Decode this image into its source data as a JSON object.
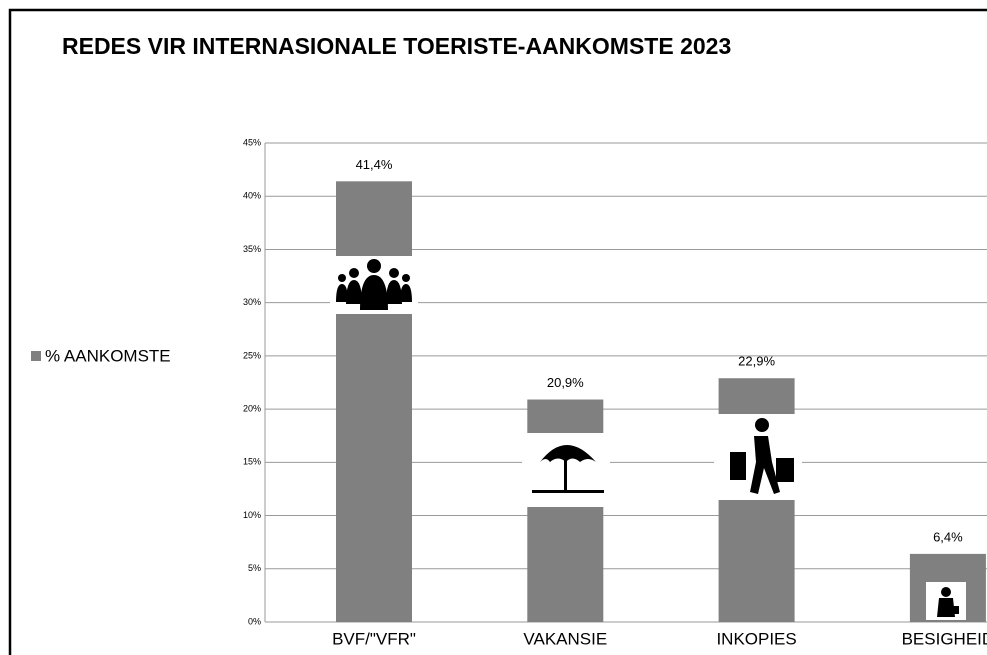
{
  "chart_data": {
    "type": "bar",
    "title": "REDES VIR INTERNASIONALE TOERISTE-AANKOMSTE 2023",
    "categories": [
      "BVF/\"VFR\"",
      "VAKANSIE",
      "INKOPIES",
      "BESIGHEID"
    ],
    "series": [
      {
        "name": "% AANKOMSTE",
        "color": "#808080",
        "values": [
          41.4,
          20.9,
          22.9,
          6.4
        ],
        "value_labels": [
          "41,4%",
          "20,9%",
          "22,9%",
          "6,4%"
        ]
      }
    ],
    "ylim": [
      0,
      45
    ],
    "yticks": [
      {
        "value": 0,
        "label": "0%"
      },
      {
        "value": 5,
        "label": "5%"
      },
      {
        "value": 10,
        "label": "10%"
      },
      {
        "value": 15,
        "label": "15%"
      },
      {
        "value": 20,
        "label": "20%"
      },
      {
        "value": 25,
        "label": "25%"
      },
      {
        "value": 30,
        "label": "30%"
      },
      {
        "value": 35,
        "label": "35%"
      },
      {
        "value": 40,
        "label": "40%"
      },
      {
        "value": 45,
        "label": "45%"
      }
    ],
    "grid": true,
    "legend": "left"
  }
}
